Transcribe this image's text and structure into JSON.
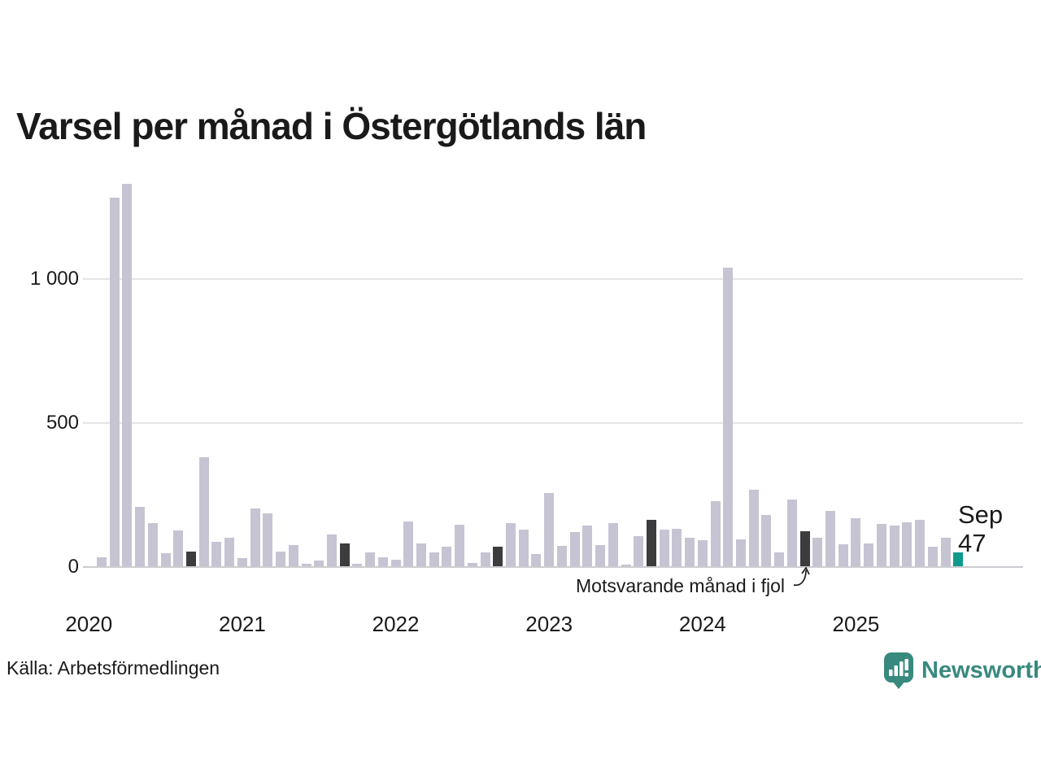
{
  "title": "Varsel per månad i Östergötlands län",
  "source": "Källa: Arbetsförmedlingen",
  "logo": {
    "brand": "Newsworthy"
  },
  "annotation": {
    "label": "Motsvarande månad i fjol"
  },
  "highlight": {
    "month_label": "Sep",
    "value_label": "47"
  },
  "colors": {
    "bar": "#c6c4d3",
    "bar_last_year": "#3c3c3f",
    "bar_highlight": "#109a8b",
    "brand": "#38897e",
    "gridline": "#e4e4e6",
    "axis_line": "#cdcdd1",
    "text": "#1a1a1a"
  },
  "y_axis": {
    "ticks": [
      {
        "value": 0,
        "label": "0"
      },
      {
        "value": 500,
        "label": "500"
      },
      {
        "value": 1000,
        "label": "1 000"
      }
    ]
  },
  "x_axis": {
    "ticks": [
      "2020",
      "2021",
      "2022",
      "2023",
      "2024",
      "2025"
    ]
  },
  "chart_data": {
    "type": "bar",
    "title": "Varsel per månad i Östergötlands län",
    "start_month": "2020-02",
    "end_month": "2025-09",
    "ylim": [
      0,
      1400
    ],
    "gridlines": [
      500,
      1000
    ],
    "grid": true,
    "legend_position": "none",
    "values": [
      31,
      1280,
      1330,
      206,
      151,
      45,
      124,
      51,
      378,
      85,
      99,
      28,
      200,
      185,
      50,
      73,
      8,
      20,
      110,
      78,
      8,
      49,
      30,
      23,
      156,
      78,
      48,
      69,
      145,
      10,
      48,
      67,
      150,
      128,
      43,
      255,
      70,
      120,
      142,
      73,
      150,
      5,
      105,
      160,
      128,
      130,
      100,
      90,
      227,
      1037,
      92,
      265,
      179,
      47,
      233,
      123,
      99,
      191,
      75,
      167,
      80,
      148,
      141,
      153,
      160,
      68,
      100,
      47
    ],
    "dark_indices": [
      7,
      19,
      31,
      43,
      55
    ],
    "dark_series_name": "Motsvarande månad i fjol",
    "highlight_index": 67,
    "highlight_value": 47,
    "year_tick_indices": [
      -1,
      11,
      23,
      35,
      47,
      59
    ]
  }
}
